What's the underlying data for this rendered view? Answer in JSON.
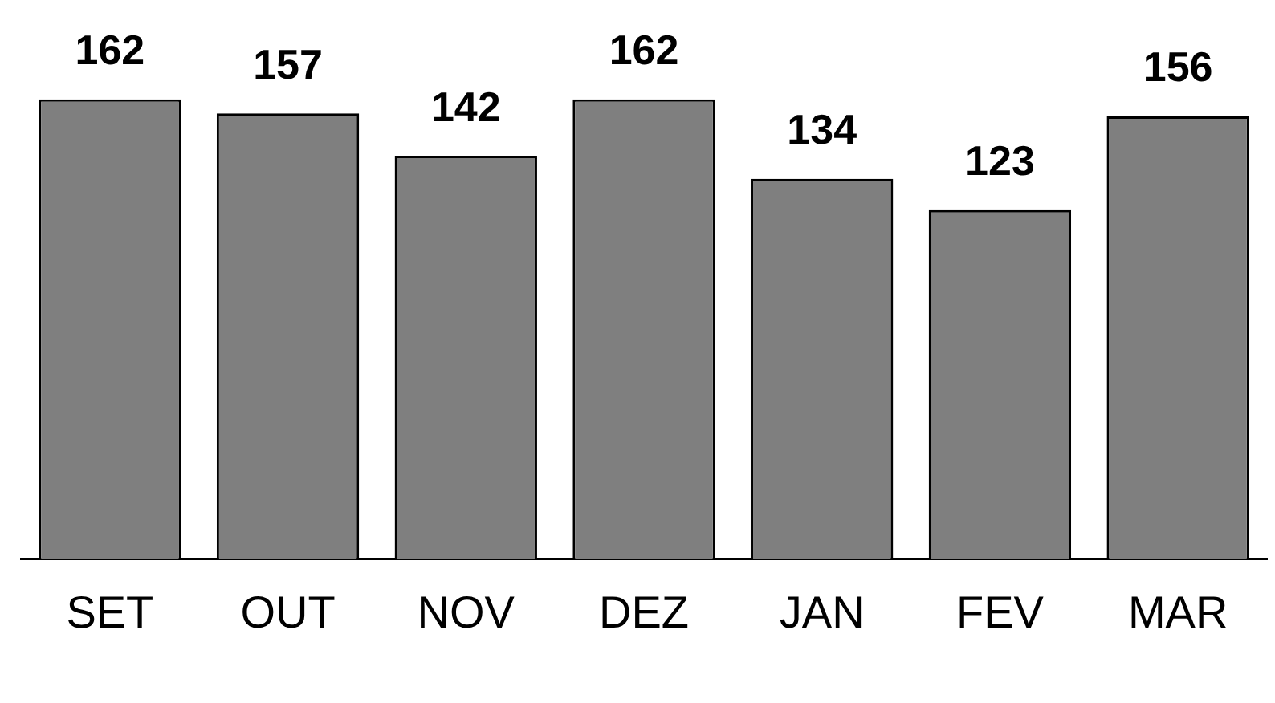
{
  "chart_data": {
    "type": "bar",
    "categories": [
      "SET",
      "OUT",
      "NOV",
      "DEZ",
      "JAN",
      "FEV",
      "MAR"
    ],
    "values": [
      162,
      157,
      142,
      162,
      134,
      123,
      156
    ],
    "color": "#7f7f7f",
    "data_labels": true,
    "relative": false,
    "grid": false,
    "legend": false
  }
}
